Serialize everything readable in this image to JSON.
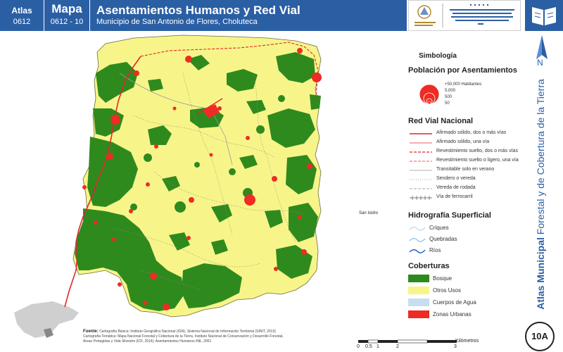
{
  "header": {
    "atlas_label": "Atlas",
    "atlas_code": "0612",
    "map_label": "Mapa",
    "map_code": "0612 - 10",
    "title": "Asentamientos Humanos y Red Vial",
    "subtitle": "Municipio de San Antonio de Flores, Choluteca"
  },
  "side": {
    "vertical_title_bold": "Atlas Municipal",
    "vertical_title_rest": " Forestal y de Cobertura de la Tierra",
    "north_label": "N",
    "badge": "10A"
  },
  "legend": {
    "title": "Simbología",
    "population": {
      "heading": "Población por Asentamientos",
      "labels": [
        "+50,000 Habitantes",
        "5,000",
        "500",
        "50"
      ]
    },
    "roads": {
      "heading": "Red Vial Nacional",
      "items": [
        {
          "label": "Afirmado sólido, dos o más vías",
          "color": "#e0282a",
          "style": "solid",
          "width": 1.5
        },
        {
          "label": "Afirmado sólido, una vía",
          "color": "#e0282a",
          "style": "solid",
          "width": 0.8
        },
        {
          "label": "Revestimiento suelto, dos o más vías",
          "color": "#e0282a",
          "style": "dash",
          "width": 1.2
        },
        {
          "label": "Revestimiento suelto o ligero, una vía",
          "color": "#e0282a",
          "style": "dash",
          "width": 0.7
        },
        {
          "label": "Transitable solo en verano",
          "color": "#9a9a9a",
          "style": "solid",
          "width": 0.8
        },
        {
          "label": "Sendero o vereda",
          "color": "#888888",
          "style": "dot",
          "width": 0.7
        },
        {
          "label": "Vereda de rodada",
          "color": "#888888",
          "style": "dash",
          "width": 0.7
        },
        {
          "label": "Vía de ferrocarril",
          "color": "#555555",
          "style": "rail",
          "width": 0.7
        }
      ]
    },
    "hydro": {
      "heading": "Hidrografía Superficial",
      "items": [
        {
          "label": "Criques",
          "color": "#9fd3f0"
        },
        {
          "label": "Quebradas",
          "color": "#6fb6e6"
        },
        {
          "label": "Ríos",
          "color": "#3b6fc4"
        }
      ]
    },
    "cover": {
      "heading": "Coberturas",
      "items": [
        {
          "label": "Bosque",
          "color": "#2f8a1e"
        },
        {
          "label": "Otros Usos",
          "color": "#f7f58a"
        },
        {
          "label": "Cuerpos de Agua",
          "color": "#c6dff0"
        },
        {
          "label": "Zonas Urbanas",
          "color": "#ee2b24"
        }
      ]
    }
  },
  "map": {
    "place_label": "San Isidro"
  },
  "sources": {
    "heading": "Fuente:",
    "line1": "Cartografía Básica: Instituto Geográfico Nacional (IGN), Sistema Nacional de Información Territorial (SINIT, 2013)",
    "line2": "Cartografía Temática: Mapa Nacional Forestal y Cobertura de la Tierra, Instituto Nacional de Conservación y Desarrollo Forestal,",
    "line3": "Áreas Protegidas y Vida Silvestre (ICF, 2014); Asentamientos Humanos INE, 2001"
  },
  "scale": {
    "unit": "Kilómetros",
    "ticks": [
      "0",
      "0.5",
      "1",
      "2",
      "3"
    ]
  },
  "colors": {
    "brand_blue": "#2b5fa4",
    "forest": "#2f8a1e",
    "other_uses": "#f7f58a",
    "urban": "#ee2b24"
  }
}
